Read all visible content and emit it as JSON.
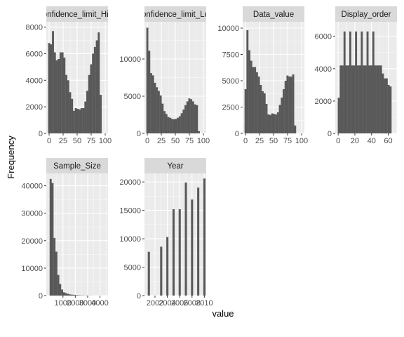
{
  "axis": {
    "xlabel": "value",
    "ylabel": "Frequency"
  },
  "colors": {
    "panel_bg": "#EBEBEB",
    "grid_major": "#FFFFFF",
    "strip_bg": "#D9D9D9",
    "bar_fill": "#595959",
    "tick_text": "#4D4D4D"
  },
  "chart_data": [
    {
      "type": "bar",
      "title": "Confidence_limit_High",
      "xlim": [
        -5,
        105
      ],
      "ylim": [
        0,
        8400
      ],
      "xticks": [
        0,
        25,
        50,
        75,
        100
      ],
      "xtick_labels": [
        "0",
        "25",
        "50",
        "75",
        "100"
      ],
      "yticks": [
        0,
        2000,
        4000,
        6000,
        8000
      ],
      "ytick_labels": [
        "0",
        "2000",
        "4000",
        "6000",
        "8000"
      ],
      "bin_start": -1.7,
      "bin_width": 3.4,
      "values": [
        6800,
        6700,
        7700,
        6100,
        5500,
        5600,
        6100,
        6100,
        5700,
        4400,
        4000,
        3100,
        2600,
        1700,
        1900,
        1850,
        1800,
        1900,
        1900,
        2400,
        3200,
        4400,
        5200,
        6000,
        6500,
        7000,
        7600,
        2900
      ]
    },
    {
      "type": "bar",
      "title": "Confidence_limit_Low",
      "xlim": [
        -5,
        105
      ],
      "ylim": [
        0,
        15000
      ],
      "xticks": [
        0,
        25,
        50,
        75,
        100
      ],
      "xtick_labels": [
        "0",
        "25",
        "50",
        "75",
        "100"
      ],
      "yticks": [
        0,
        5000,
        10000
      ],
      "ytick_labels": [
        "0",
        "5000",
        "10000"
      ],
      "bin_start": -1.7,
      "bin_width": 3.4,
      "values": [
        14200,
        11100,
        8100,
        7800,
        6800,
        6200,
        5700,
        5100,
        4000,
        3000,
        2600,
        2200,
        2100,
        1950,
        1900,
        1950,
        2100,
        2300,
        2700,
        3200,
        3800,
        4300,
        4700,
        4600,
        4300,
        3900,
        3800,
        300
      ]
    },
    {
      "type": "bar",
      "title": "Data_value",
      "xlim": [
        -5,
        105
      ],
      "ylim": [
        0,
        10600
      ],
      "xticks": [
        0,
        25,
        50,
        75,
        100
      ],
      "xtick_labels": [
        "0",
        "25",
        "50",
        "75",
        "100"
      ],
      "yticks": [
        0,
        2500,
        5000,
        7500,
        10000
      ],
      "ytick_labels": [
        "0",
        "2500",
        "5000",
        "7500",
        "10000"
      ],
      "bin_start": -1.7,
      "bin_width": 3.4,
      "values": [
        4200,
        9800,
        7900,
        6900,
        6300,
        6300,
        5800,
        5400,
        4600,
        4000,
        3800,
        2800,
        1800,
        1750,
        1900,
        1850,
        1800,
        2000,
        2700,
        3400,
        4200,
        5000,
        5500,
        5400,
        5400,
        5600,
        750
      ]
    },
    {
      "type": "bar",
      "title": "Display_order",
      "xlim": [
        -3.5,
        70.5
      ],
      "ylim": [
        0,
        6900
      ],
      "xticks": [
        0,
        20,
        40,
        60
      ],
      "xtick_labels": [
        "0",
        "20",
        "40",
        "60"
      ],
      "yticks": [
        0,
        2000,
        4000,
        6000
      ],
      "ytick_labels": [
        "0",
        "2000",
        "4000",
        "6000"
      ],
      "bin_start": -0.5,
      "bin_width": 2.3,
      "values": [
        2200,
        4200,
        4200,
        6300,
        4200,
        4200,
        6300,
        4200,
        4200,
        6300,
        4200,
        4200,
        6300,
        4200,
        4200,
        6300,
        4200,
        4200,
        6300,
        4200,
        4200,
        4200,
        4200,
        3700,
        3400,
        3400,
        3000,
        2900
      ]
    },
    {
      "type": "bar",
      "title": "Sample_Size",
      "xlim": [
        -350,
        4650
      ],
      "ylim": [
        0,
        44500
      ],
      "xticks": [
        1000,
        2000,
        3000,
        4000
      ],
      "xtick_labels": [
        "1000",
        "2000",
        "3000",
        "4000"
      ],
      "yticks": [
        0,
        10000,
        20000,
        30000,
        40000
      ],
      "ytick_labels": [
        "0",
        "10000",
        "20000",
        "30000",
        "40000"
      ],
      "bin_start": -80,
      "bin_width": 155,
      "values": [
        42500,
        41000,
        21000,
        16000,
        7500,
        4200,
        2200,
        1200,
        900,
        650,
        450,
        350,
        300,
        200,
        150,
        100,
        80,
        50,
        40,
        30,
        20,
        15,
        10,
        8,
        5,
        3,
        2,
        1
      ]
    },
    {
      "type": "bar",
      "title": "Year",
      "xlim": [
        2000.3,
        2010.3
      ],
      "ylim": [
        0,
        21500
      ],
      "xticks": [
        2002,
        2004,
        2006,
        2008,
        2010
      ],
      "xtick_labels": [
        "2002",
        "2004",
        "2006",
        "2008",
        "2010"
      ],
      "yticks": [
        0,
        5000,
        10000,
        15000,
        20000
      ],
      "ytick_labels": [
        "0",
        "5000",
        "10000",
        "15000",
        "20000"
      ],
      "x": [
        2001,
        2002,
        2003,
        2004,
        2005,
        2006,
        2007,
        2008,
        2009,
        2010
      ],
      "bar_width": 0.33,
      "values": [
        7700,
        0,
        8600,
        10300,
        15200,
        15200,
        19900,
        16900,
        19000,
        20600
      ]
    }
  ]
}
